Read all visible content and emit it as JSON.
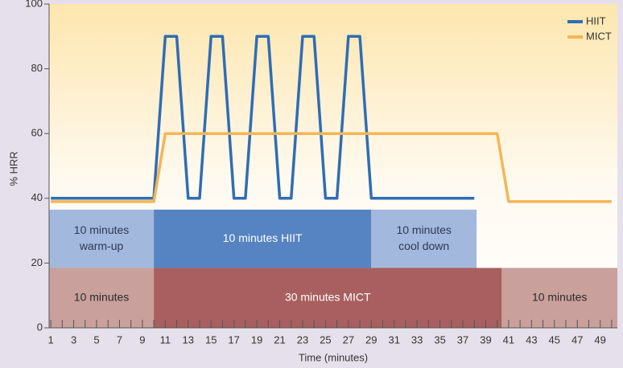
{
  "chart_data": {
    "type": "line",
    "xlabel": "Time (minutes)",
    "ylabel": "% HRR",
    "xlim": [
      0.85,
      50.5
    ],
    "ylim": [
      0,
      100
    ],
    "xticks": [
      1,
      3,
      5,
      7,
      9,
      11,
      13,
      15,
      17,
      19,
      21,
      23,
      25,
      27,
      29,
      31,
      33,
      35,
      37,
      39,
      41,
      43,
      45,
      47,
      49
    ],
    "xminor": [
      2,
      4,
      6,
      8,
      10,
      12,
      14,
      16,
      18,
      20,
      22,
      24,
      26,
      28,
      30,
      32,
      34,
      36,
      38,
      40,
      42,
      44,
      46,
      48,
      50
    ],
    "yticks": [
      0,
      20,
      40,
      60,
      80,
      100
    ],
    "legend": "upper right",
    "series": [
      {
        "name": "HIIT",
        "color": "#2f6db5",
        "x": [
          1,
          10,
          11,
          12,
          13,
          14,
          15,
          16,
          17,
          18,
          19,
          20,
          21,
          22,
          23,
          24,
          25,
          26,
          27,
          28,
          29,
          38
        ],
        "values": [
          40,
          40,
          90,
          90,
          40,
          40,
          90,
          90,
          40,
          40,
          90,
          90,
          40,
          40,
          90,
          90,
          40,
          40,
          90,
          90,
          40,
          40
        ]
      },
      {
        "name": "MICT",
        "color": "#f5b556",
        "x": [
          1,
          10,
          11,
          40,
          41,
          50
        ],
        "values": [
          39,
          39,
          60,
          60,
          39,
          39
        ]
      }
    ],
    "boxes": [
      {
        "text": [
          "10 minutes",
          "warm-up"
        ],
        "x": [
          0.85,
          10
        ],
        "y": [
          18.5,
          36.5
        ],
        "color": "#a3b8dd",
        "text_color": "#2b3a55"
      },
      {
        "text": [
          "10 minutes HIIT"
        ],
        "x": [
          10,
          29
        ],
        "y": [
          18.5,
          36.5
        ],
        "color": "#5683c2",
        "text_color": "#ffffff"
      },
      {
        "text": [
          "10 minutes",
          "cool down"
        ],
        "x": [
          29,
          38.2
        ],
        "y": [
          18.5,
          36.5
        ],
        "color": "#a3b8dd",
        "text_color": "#2b3a55"
      },
      {
        "text": [
          "10 minutes"
        ],
        "x": [
          0.85,
          10
        ],
        "y": [
          0,
          18.5
        ],
        "color": "#c9a09b",
        "text_color": "#2b2b2b"
      },
      {
        "text": [
          "30 minutes MICT"
        ],
        "x": [
          10,
          40.4
        ],
        "y": [
          0,
          18.5
        ],
        "color": "#a95f5f",
        "text_color": "#ffffff"
      },
      {
        "text": [
          "10 minutes"
        ],
        "x": [
          40.4,
          50.5
        ],
        "y": [
          0,
          18.5
        ],
        "color": "#c9a09b",
        "text_color": "#2b2b2b"
      }
    ]
  }
}
